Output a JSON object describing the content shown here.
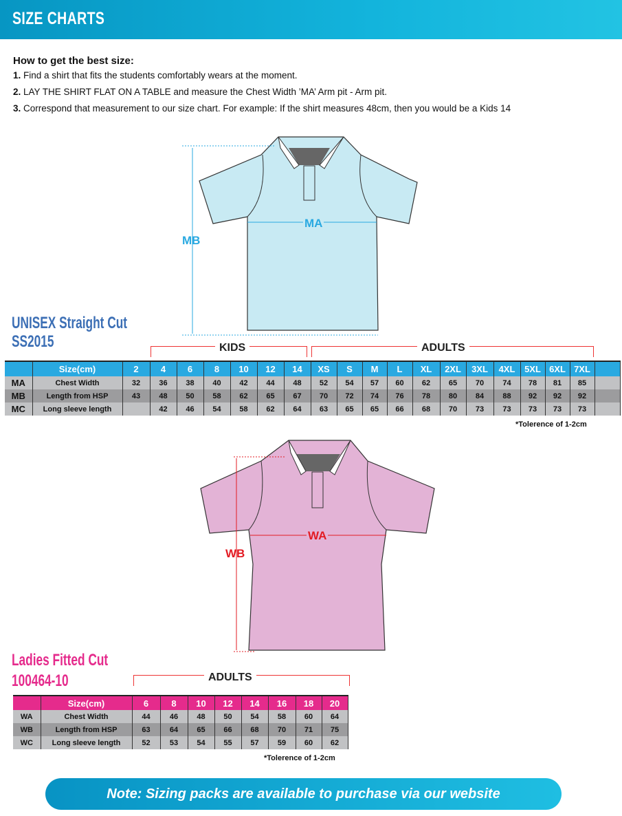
{
  "header": {
    "title": "SIZE CHARTS"
  },
  "intro": {
    "heading": "How to get the best size:",
    "steps": [
      {
        "num": "1.",
        "text": "Find a shirt that fits the students comfortably wears at the moment."
      },
      {
        "num": "2.",
        "text": "LAY THE SHIRT FLAT ON A TABLE and measure the Chest Width ’MA’ Arm pit - Arm pit."
      },
      {
        "num": "3.",
        "text": "Correspond that measurement to our size chart. For example: If the shirt measures 48cm, then you would be a Kids 14"
      }
    ]
  },
  "unisex": {
    "title": "UNISEX Straight Cut",
    "code": "SS2015",
    "shirt_color": "#c8eaf3",
    "accent": "#29a9e1",
    "labels": {
      "width": "MA",
      "length": "MB"
    },
    "groups": {
      "kids": "KIDS",
      "adults": "ADULTS"
    },
    "header_label": "Size(cm)",
    "sizes": [
      "2",
      "4",
      "6",
      "8",
      "10",
      "12",
      "14",
      "XS",
      "S",
      "M",
      "L",
      "XL",
      "2XL",
      "3XL",
      "4XL",
      "5XL",
      "6XL",
      "7XL"
    ],
    "rows": [
      {
        "code": "MA",
        "label": "Chest Width",
        "values": [
          "32",
          "36",
          "38",
          "40",
          "42",
          "44",
          "48",
          "52",
          "54",
          "57",
          "60",
          "62",
          "65",
          "70",
          "74",
          "78",
          "81",
          "85"
        ]
      },
      {
        "code": "MB",
        "label": "Length from HSP",
        "values": [
          "43",
          "48",
          "50",
          "58",
          "62",
          "65",
          "67",
          "70",
          "72",
          "74",
          "76",
          "78",
          "80",
          "84",
          "88",
          "92",
          "92",
          "92"
        ]
      },
      {
        "code": "MC",
        "label": "Long sleeve length",
        "values": [
          "",
          "42",
          "46",
          "54",
          "58",
          "62",
          "64",
          "63",
          "65",
          "65",
          "66",
          "68",
          "70",
          "73",
          "73",
          "73",
          "73",
          "73"
        ]
      }
    ],
    "tolerance": "*Tolerence of 1-2cm"
  },
  "ladies": {
    "title": "Ladies Fitted Cut",
    "code": "100464-10",
    "shirt_color": "#e3b3d6",
    "accent": "#e52b8c",
    "labels": {
      "width": "WA",
      "length": "WB"
    },
    "groups": {
      "adults": "ADULTS"
    },
    "header_label": "Size(cm)",
    "sizes": [
      "6",
      "8",
      "10",
      "12",
      "14",
      "16",
      "18",
      "20"
    ],
    "rows": [
      {
        "code": "WA",
        "label": "Chest Width",
        "values": [
          "44",
          "46",
          "48",
          "50",
          "54",
          "58",
          "60",
          "64"
        ]
      },
      {
        "code": "WB",
        "label": "Length from HSP",
        "values": [
          "63",
          "64",
          "65",
          "66",
          "68",
          "70",
          "71",
          "75"
        ]
      },
      {
        "code": "WC",
        "label": "Long sleeve length",
        "values": [
          "52",
          "53",
          "54",
          "55",
          "57",
          "59",
          "60",
          "62"
        ]
      }
    ],
    "tolerance": "*Tolerence of 1-2cm"
  },
  "note": "Note: Sizing packs are available to purchase via our website"
}
